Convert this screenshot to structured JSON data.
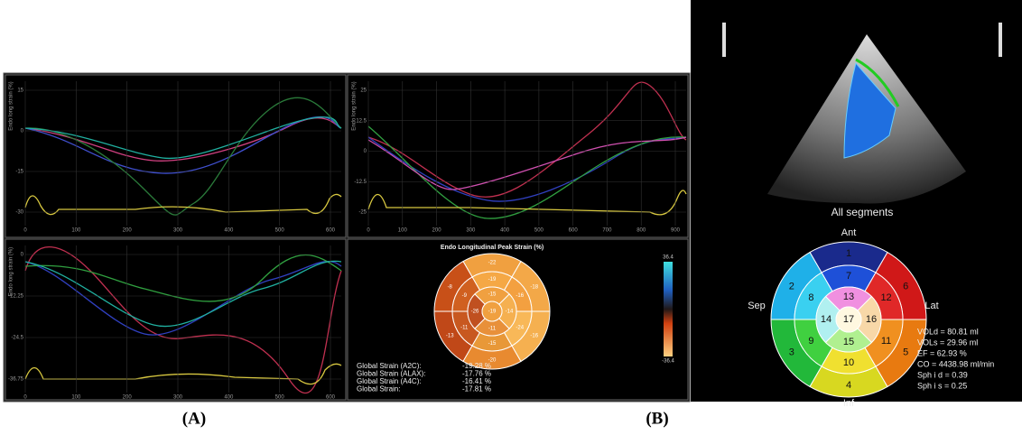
{
  "figure_labels": [
    "(A)",
    "(B)"
  ],
  "panel_a": {
    "plots": [
      {
        "y_axis_label": "Endo long strain (%)",
        "yticks": [
          "15",
          "0",
          "-15",
          "-30"
        ],
        "xticks": [
          "0",
          "100",
          "200",
          "300",
          "400",
          "500",
          "600"
        ]
      },
      {
        "y_axis_label": "Endo long strain (%)",
        "yticks": [
          "25",
          "12.5",
          "0",
          "-12.5",
          "-25"
        ],
        "xticks": [
          "0",
          "100",
          "200",
          "300",
          "400",
          "500",
          "600",
          "700",
          "800",
          "900"
        ]
      },
      {
        "y_axis_label": "Endo long strain (%)",
        "yticks": [
          "0",
          "-12.25",
          "-24.5",
          "-36.75"
        ],
        "xticks": [
          "0",
          "100",
          "200",
          "300",
          "400",
          "500",
          "600"
        ]
      }
    ],
    "bullseye": {
      "title": "Endo Longitudinal Peak Strain (%)",
      "outer": [
        "-22",
        "-8",
        "-13",
        "-20",
        "-16",
        "-18"
      ],
      "mid": [
        "-19",
        "-9",
        "-11",
        "-15",
        "-24",
        "-16"
      ],
      "inner": [
        "-15",
        "-26",
        "-11",
        "-14"
      ],
      "apex": "-19",
      "scale_max": "36.4",
      "scale_min": "-36.4"
    },
    "global_strain": [
      {
        "label": "Global Strain (A2C):",
        "value": "-19.28 %"
      },
      {
        "label": "Global Strain (ALAX):",
        "value": "-17.76 %"
      },
      {
        "label": "Global Strain (A4C):",
        "value": "-16.41 %"
      },
      {
        "label": "Global Strain:",
        "value": "-17.81 %"
      }
    ]
  },
  "panel_b": {
    "echo_caption": "All segments",
    "directions": {
      "ant": "Ant",
      "inf": "Inf",
      "sep": "Sep",
      "lat": "Lat"
    },
    "segments": {
      "outer": [
        "1",
        "2",
        "3",
        "4",
        "5",
        "6"
      ],
      "mid": [
        "7",
        "8",
        "9",
        "10",
        "11",
        "12"
      ],
      "inner": [
        "13",
        "14",
        "15",
        "16"
      ],
      "apex": "17"
    },
    "measurements": [
      "VOLd = 80.81 ml",
      "VOLs = 29.96 ml",
      "EF = 62.93 %",
      "CO = 4438.98 ml/min",
      "Sph i d = 0.39",
      "Sph i s = 0.25"
    ]
  }
}
